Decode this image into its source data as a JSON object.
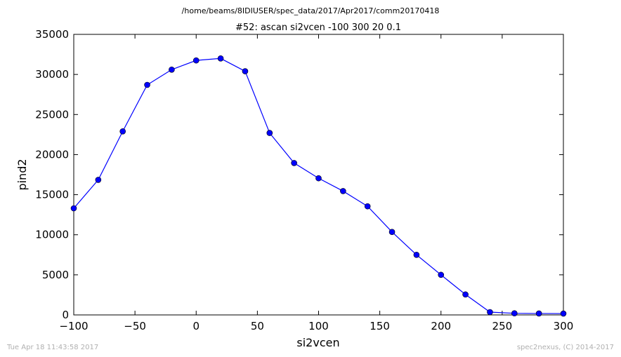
{
  "chart_data": {
    "type": "line",
    "suptitle": "/home/beams/8IDIUSER/spec_data/2017/Apr2017/comm20170418",
    "title": "#52: ascan  si2vcen -100 300  20 0.1",
    "xlabel": "si2vcen",
    "ylabel": "pind2",
    "xlim": [
      -100,
      300
    ],
    "ylim": [
      0,
      35000
    ],
    "xticks": [
      "−100",
      "−50",
      "0",
      "50",
      "100",
      "150",
      "200",
      "250",
      "300"
    ],
    "yticks": [
      "0",
      "5000",
      "10000",
      "15000",
      "20000",
      "25000",
      "30000",
      "35000"
    ],
    "grid": false,
    "legend": "none",
    "series_color": "#0000ff",
    "x": [
      -100,
      -80,
      -60,
      -40,
      -20,
      0,
      20,
      40,
      60,
      80,
      100,
      120,
      140,
      160,
      180,
      200,
      220,
      240,
      260,
      280,
      300
    ],
    "y": [
      13300,
      16850,
      22900,
      28700,
      30600,
      31750,
      32000,
      30400,
      22700,
      18950,
      17050,
      15450,
      13550,
      10350,
      7500,
      5000,
      2550,
      350,
      200,
      180,
      170
    ]
  },
  "footer": {
    "timestamp": "Tue Apr 18 11:43:58 2017",
    "credit": "spec2nexus, (C) 2014-2017"
  }
}
